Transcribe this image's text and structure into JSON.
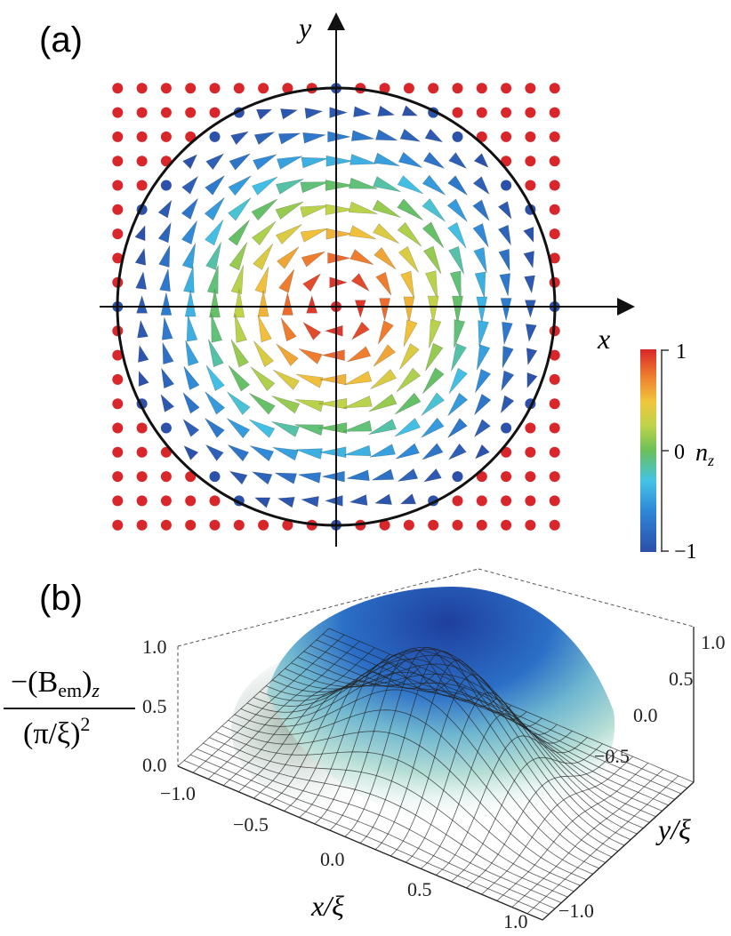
{
  "panel_a": {
    "label": "(a)",
    "x_axis_label": "x",
    "y_axis_label": "y",
    "colorbar": {
      "quantity": "n",
      "quantity_subscript": "z",
      "ticks": [
        "1",
        "0",
        "−1"
      ],
      "colormap": [
        "#2c4fa8",
        "#2f86d6",
        "#44c3e6",
        "#6ac05a",
        "#bcd34a",
        "#f0c63d",
        "#ef7c2e",
        "#d8262a"
      ]
    }
  },
  "panel_b": {
    "label": "(b)",
    "z_label_numerator": "−(B",
    "z_label_numerator_sub": "em",
    "z_label_numerator_close": ")",
    "z_label_numerator_sub2": "z",
    "z_label_denominator": "(π/ξ)",
    "z_label_denominator_sup": "2",
    "z_ticks": [
      "1.0",
      "0.5",
      "0.0"
    ],
    "x_ticks": [
      "−1.0",
      "−0.5",
      "0.0",
      "0.5",
      "1.0"
    ],
    "y_ticks": [
      "1.0",
      "0.5",
      "0.0",
      "−0.5",
      "−1.0"
    ],
    "x_axis_label": "x/ξ",
    "y_axis_label": "y/ξ"
  }
}
